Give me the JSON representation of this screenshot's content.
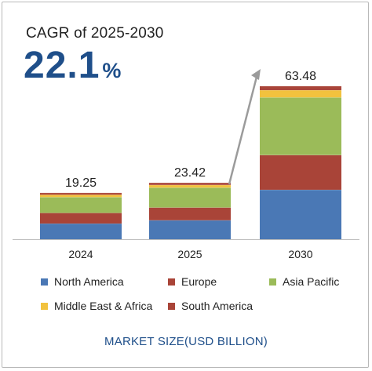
{
  "header": {
    "cagr_label": "CAGR of 2025-2030",
    "cagr_number": "22.1",
    "cagr_unit": "%"
  },
  "footer": {
    "label": "MARKET SIZE(USD BILLION)"
  },
  "chart_data": {
    "type": "bar",
    "stacked": true,
    "categories": [
      "2024",
      "2025",
      "2030"
    ],
    "totals": [
      19.25,
      23.42,
      63.48
    ],
    "total_labels": [
      "19.25",
      "23.42",
      "63.48"
    ],
    "series": [
      {
        "name": "North America",
        "color": "#4a78b5",
        "values": [
          6.5,
          7.85,
          20.5
        ]
      },
      {
        "name": "Europe",
        "color": "#a94438",
        "values": [
          4.4,
          5.3,
          14.4
        ]
      },
      {
        "name": "Asia Pacific",
        "color": "#9bbb59",
        "values": [
          6.55,
          8.25,
          23.88
        ]
      },
      {
        "name": "Middle East & Africa",
        "color": "#f2c23e",
        "values": [
          1.0,
          1.1,
          3.0
        ]
      },
      {
        "name": "South America",
        "color": "#a94438",
        "values": [
          0.8,
          0.92,
          1.7
        ]
      }
    ],
    "ylim": [
      0,
      66
    ],
    "grid": false,
    "legend_position": "bottom",
    "annotation": "growth arrow from 2025 to 2030"
  }
}
